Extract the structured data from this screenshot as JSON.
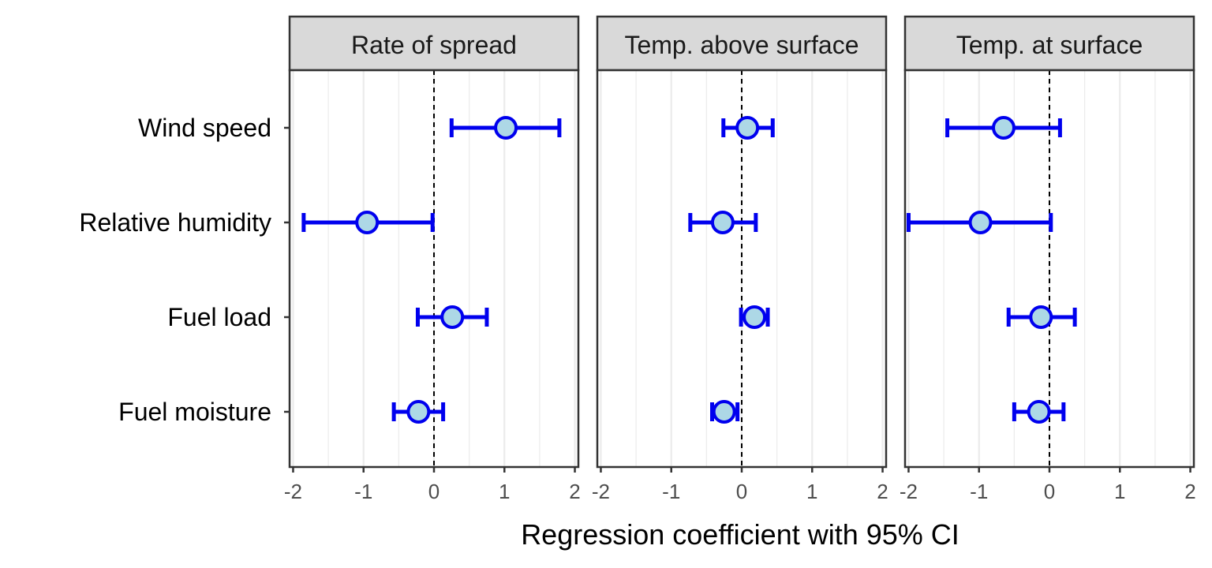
{
  "chart_data": {
    "type": "scatter",
    "subtype": "coefficient-plot-with-error-bars",
    "title": "",
    "xlabel": "Regression coefficient with 95% CI",
    "ylabel": "",
    "xlim": [
      -2.05,
      2.05
    ],
    "xticks": [
      -2,
      -1,
      0,
      1,
      2
    ],
    "xtick_labels": [
      "-2",
      "-1",
      "0",
      "1",
      "2"
    ],
    "reference_line_x": 0,
    "grid": true,
    "legend": "none",
    "categories": [
      "Wind speed",
      "Relative humidity",
      "Fuel load",
      "Fuel moisture"
    ],
    "colors": {
      "error_bar": "#0000ee",
      "point_fill": "#add8e6",
      "point_edge": "#0000ee",
      "strip_bg": "#d9d9d9",
      "panel_border": "#333333",
      "grid": "#ebebeb"
    },
    "panels": [
      {
        "name": "Rate of spread",
        "points": [
          {
            "label": "Wind speed",
            "estimate": 1.02,
            "lower": 0.25,
            "upper": 1.78
          },
          {
            "label": "Relative humidity",
            "estimate": -0.95,
            "lower": -1.85,
            "upper": -0.02
          },
          {
            "label": "Fuel load",
            "estimate": 0.26,
            "lower": -0.23,
            "upper": 0.75
          },
          {
            "label": "Fuel moisture",
            "estimate": -0.22,
            "lower": -0.57,
            "upper": 0.13
          }
        ]
      },
      {
        "name": "Temp. above surface",
        "points": [
          {
            "label": "Wind speed",
            "estimate": 0.08,
            "lower": -0.26,
            "upper": 0.44
          },
          {
            "label": "Relative humidity",
            "estimate": -0.27,
            "lower": -0.73,
            "upper": 0.2
          },
          {
            "label": "Fuel load",
            "estimate": 0.18,
            "lower": -0.01,
            "upper": 0.37
          },
          {
            "label": "Fuel moisture",
            "estimate": -0.25,
            "lower": -0.42,
            "upper": -0.06
          }
        ]
      },
      {
        "name": "Temp. at surface",
        "points": [
          {
            "label": "Wind speed",
            "estimate": -0.65,
            "lower": -1.45,
            "upper": 0.15
          },
          {
            "label": "Relative humidity",
            "estimate": -0.98,
            "lower": -2.0,
            "upper": 0.02
          },
          {
            "label": "Fuel load",
            "estimate": -0.12,
            "lower": -0.58,
            "upper": 0.36
          },
          {
            "label": "Fuel moisture",
            "estimate": -0.15,
            "lower": -0.5,
            "upper": 0.2
          }
        ]
      }
    ]
  }
}
